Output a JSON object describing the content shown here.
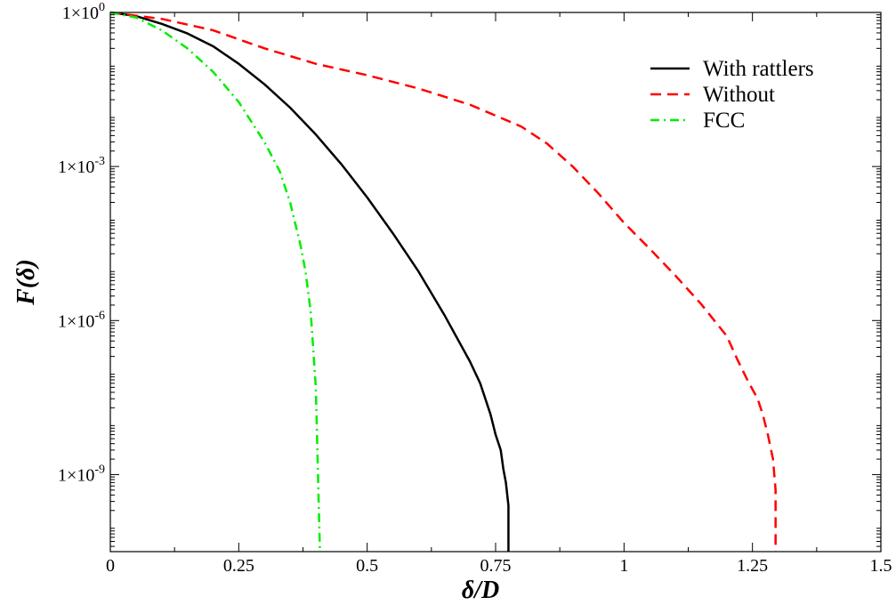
{
  "chart_data": {
    "type": "line",
    "title": "",
    "xlabel": "δ/D",
    "ylabel": "F(δ)",
    "xlim": [
      0,
      1.5
    ],
    "ylim_log10": [
      -10.5,
      0
    ],
    "yscale": "log",
    "grid": false,
    "legend_position": "top-right",
    "x_ticks": [
      {
        "value": 0,
        "label": "0"
      },
      {
        "value": 0.25,
        "label": "0.25"
      },
      {
        "value": 0.5,
        "label": "0.5"
      },
      {
        "value": 0.75,
        "label": "0.75"
      },
      {
        "value": 1,
        "label": "1"
      },
      {
        "value": 1.25,
        "label": "1.25"
      },
      {
        "value": 1.5,
        "label": "1.5"
      }
    ],
    "y_ticks": [
      {
        "log10": 0,
        "mantissa": "1×10",
        "exponent": "0"
      },
      {
        "log10": -3,
        "mantissa": "1×10",
        "exponent": "-3"
      },
      {
        "log10": -6,
        "mantissa": "1×10",
        "exponent": "-6"
      },
      {
        "log10": -9,
        "mantissa": "1×10",
        "exponent": "-9"
      }
    ],
    "series": [
      {
        "name": "With rattlers",
        "color": "#000000",
        "dash": "solid",
        "points": [
          [
            0,
            1
          ],
          [
            0.05,
            0.85
          ],
          [
            0.1,
            0.6
          ],
          [
            0.15,
            0.39
          ],
          [
            0.2,
            0.22
          ],
          [
            0.25,
            0.1
          ],
          [
            0.3,
            0.04
          ],
          [
            0.35,
            0.014
          ],
          [
            0.4,
            0.0042
          ],
          [
            0.45,
            0.0011
          ],
          [
            0.5,
            0.00025
          ],
          [
            0.55,
            5e-05
          ],
          [
            0.6,
            9e-06
          ],
          [
            0.65,
            1.3e-06
          ],
          [
            0.7,
            1.6e-07
          ],
          [
            0.72,
            6e-08
          ],
          [
            0.74,
            1.5e-08
          ],
          [
            0.75,
            6e-09
          ],
          [
            0.76,
            3e-09
          ],
          [
            0.765,
            1.3e-09
          ],
          [
            0.77,
            7e-10
          ],
          [
            0.775,
            2.5e-10
          ],
          [
            0.775,
            1e-11
          ]
        ]
      },
      {
        "name": "Without",
        "color": "#ff0000",
        "dash": "dashed",
        "points": [
          [
            0,
            1
          ],
          [
            0.1,
            0.75
          ],
          [
            0.2,
            0.45
          ],
          [
            0.3,
            0.2
          ],
          [
            0.4,
            0.1
          ],
          [
            0.5,
            0.06
          ],
          [
            0.6,
            0.033
          ],
          [
            0.7,
            0.016
          ],
          [
            0.8,
            0.006
          ],
          [
            0.85,
            0.0028
          ],
          [
            0.9,
            0.001
          ],
          [
            0.95,
            0.0003
          ],
          [
            1,
            8e-05
          ],
          [
            1.05,
            2.5e-05
          ],
          [
            1.1,
            7.5e-06
          ],
          [
            1.15,
            2.1e-06
          ],
          [
            1.2,
            5e-07
          ],
          [
            1.22,
            1.8e-07
          ],
          [
            1.24,
            7e-08
          ],
          [
            1.26,
            3e-08
          ],
          [
            1.27,
            1.5e-08
          ],
          [
            1.28,
            6e-09
          ],
          [
            1.29,
            2e-09
          ],
          [
            1.295,
            5e-10
          ],
          [
            1.295,
            1e-11
          ]
        ]
      },
      {
        "name": "FCC",
        "color": "#00ee00",
        "dash": "dashdot",
        "points": [
          [
            0,
            1
          ],
          [
            0.05,
            0.8
          ],
          [
            0.1,
            0.45
          ],
          [
            0.15,
            0.2
          ],
          [
            0.2,
            0.07
          ],
          [
            0.25,
            0.018
          ],
          [
            0.3,
            0.003
          ],
          [
            0.33,
            0.0008
          ],
          [
            0.35,
            0.0002
          ],
          [
            0.37,
            3e-05
          ],
          [
            0.38,
            9e-06
          ],
          [
            0.39,
            1.5e-06
          ],
          [
            0.4,
            5e-08
          ],
          [
            0.405,
            5e-10
          ],
          [
            0.408,
            1e-11
          ]
        ]
      }
    ]
  }
}
